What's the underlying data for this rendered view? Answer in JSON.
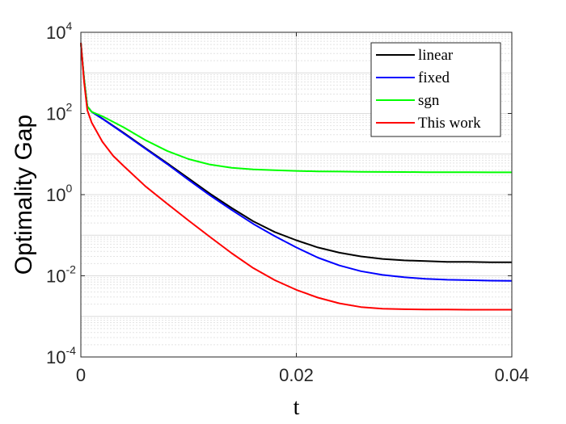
{
  "chart_data": {
    "type": "line",
    "title": "",
    "xlabel": "t",
    "ylabel": "Optimality Gap",
    "xlim": [
      0,
      0.04
    ],
    "ylim": [
      0.0001,
      10000
    ],
    "yscale": "log",
    "grid": true,
    "minor_grid": true,
    "legend_position": "top-right",
    "x_ticks": [
      {
        "value": 0,
        "label": "0"
      },
      {
        "value": 0.02,
        "label": "0.02"
      },
      {
        "value": 0.04,
        "label": "0.04"
      }
    ],
    "y_ticks": [
      {
        "value": 0.0001,
        "base": "10",
        "exp": "-4"
      },
      {
        "value": 0.01,
        "base": "10",
        "exp": "-2"
      },
      {
        "value": 1,
        "base": "10",
        "exp": "0"
      },
      {
        "value": 100,
        "base": "10",
        "exp": "2"
      },
      {
        "value": 10000,
        "base": "10",
        "exp": "4"
      }
    ],
    "series": [
      {
        "name": "linear",
        "color": "#000000",
        "x": [
          0,
          0.0003,
          0.0006,
          0.001,
          0.002,
          0.004,
          0.006,
          0.008,
          0.01,
          0.012,
          0.014,
          0.016,
          0.018,
          0.02,
          0.022,
          0.024,
          0.026,
          0.028,
          0.03,
          0.032,
          0.034,
          0.036,
          0.038,
          0.04
        ],
        "y": [
          5500,
          700,
          150,
          110,
          75,
          33,
          14,
          6,
          2.5,
          1.05,
          0.47,
          0.22,
          0.12,
          0.075,
          0.05,
          0.037,
          0.03,
          0.026,
          0.024,
          0.023,
          0.022,
          0.022,
          0.0215,
          0.0215
        ]
      },
      {
        "name": "fixed",
        "color": "#0000ff",
        "x": [
          0,
          0.0003,
          0.0006,
          0.001,
          0.002,
          0.004,
          0.006,
          0.008,
          0.01,
          0.012,
          0.014,
          0.016,
          0.018,
          0.02,
          0.022,
          0.024,
          0.026,
          0.028,
          0.03,
          0.032,
          0.034,
          0.036,
          0.038,
          0.04
        ],
        "y": [
          5500,
          700,
          150,
          110,
          74,
          32,
          13.5,
          5.7,
          2.3,
          0.95,
          0.42,
          0.19,
          0.095,
          0.05,
          0.028,
          0.018,
          0.013,
          0.0105,
          0.0092,
          0.0084,
          0.008,
          0.0078,
          0.0076,
          0.0075
        ]
      },
      {
        "name": "sgn",
        "color": "#00ff00",
        "x": [
          0,
          0.0003,
          0.0006,
          0.001,
          0.002,
          0.004,
          0.006,
          0.008,
          0.01,
          0.012,
          0.014,
          0.016,
          0.018,
          0.02,
          0.022,
          0.024,
          0.026,
          0.028,
          0.03,
          0.032,
          0.034,
          0.036,
          0.038,
          0.04
        ],
        "y": [
          5500,
          700,
          150,
          110,
          85,
          45,
          22,
          12,
          7.5,
          5.5,
          4.6,
          4.2,
          4.0,
          3.85,
          3.75,
          3.7,
          3.65,
          3.62,
          3.6,
          3.58,
          3.57,
          3.56,
          3.55,
          3.55
        ]
      },
      {
        "name": "This work",
        "color": "#ff0000",
        "x": [
          0,
          0.0003,
          0.0006,
          0.001,
          0.002,
          0.003,
          0.004,
          0.006,
          0.008,
          0.01,
          0.012,
          0.014,
          0.016,
          0.018,
          0.02,
          0.022,
          0.024,
          0.026,
          0.028,
          0.03,
          0.032,
          0.034,
          0.036,
          0.038,
          0.04
        ],
        "y": [
          5500,
          600,
          120,
          60,
          20,
          9,
          5,
          1.6,
          0.6,
          0.23,
          0.09,
          0.036,
          0.0155,
          0.0078,
          0.0045,
          0.0029,
          0.0021,
          0.0017,
          0.00155,
          0.0015,
          0.00148,
          0.00147,
          0.00146,
          0.00146,
          0.00146
        ]
      }
    ]
  }
}
